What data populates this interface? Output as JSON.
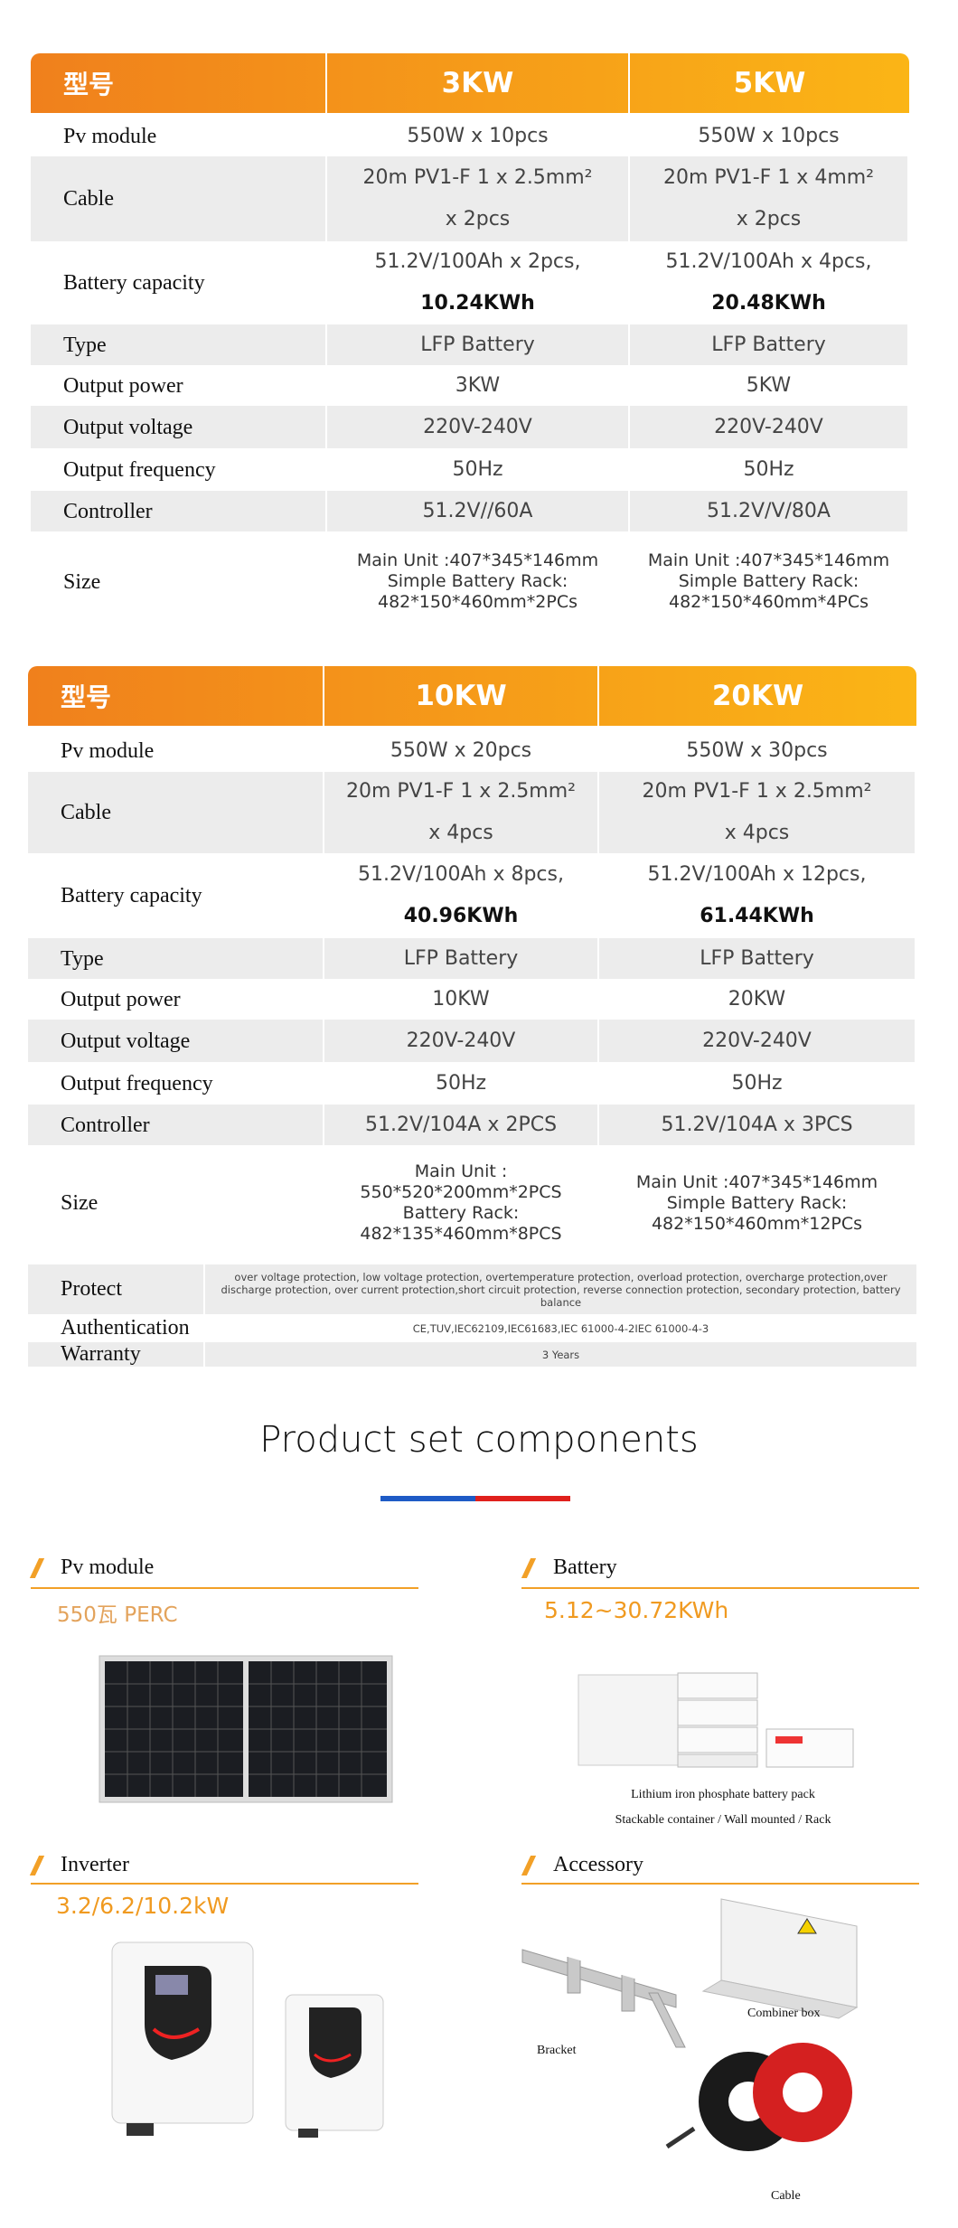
{
  "table_1": {
    "header": [
      "型号",
      "3KW",
      "5KW"
    ],
    "rows": [
      [
        "Pv module",
        "550W x 10pcs",
        "550W x 10pcs"
      ],
      [
        "Cable",
        [
          "20m PV1-F 1 x 2.5mm²",
          "x 2pcs"
        ],
        [
          "20m PV1-F 1 x 4mm²",
          "x 2pcs"
        ]
      ],
      [
        "Battery capacity",
        {
          "text": "51.2V/100Ah x 2pcs,",
          "total": "10.24KWh"
        },
        {
          "text": "51.2V/100Ah x 4pcs,",
          "total": "20.48KWh"
        }
      ],
      [
        "Type",
        "LFP Battery",
        "LFP Battery"
      ],
      [
        "Output power",
        "3KW",
        "5KW"
      ],
      [
        "Output voltage",
        "220V-240V",
        "220V-240V"
      ],
      [
        "Output frequency",
        "50Hz",
        "50Hz"
      ],
      [
        "Controller",
        "51.2V//60A",
        "51.2V/V/80A"
      ],
      [
        "Size",
        [
          "Main Unit :407*345*146mm",
          "Simple Battery Rack:",
          "482*150*460mm*2PCs"
        ],
        [
          "Main Unit :407*345*146mm",
          "Simple Battery Rack:",
          "482*150*460mm*4PCs"
        ]
      ]
    ]
  },
  "table_2": {
    "header": [
      "型号",
      "10KW",
      "20KW"
    ],
    "rows": [
      [
        "Pv module",
        "550W x 20pcs",
        "550W x 30pcs"
      ],
      [
        "Cable",
        [
          "20m PV1-F 1 x 2.5mm²",
          "x 4pcs"
        ],
        [
          "20m PV1-F 1 x 2.5mm²",
          "x 4pcs"
        ]
      ],
      [
        "Battery capacity",
        {
          "text": "51.2V/100Ah x 8pcs,",
          "total": "40.96KWh"
        },
        {
          "text": "51.2V/100Ah x 12pcs,",
          "total": "61.44KWh"
        }
      ],
      [
        "Type",
        "LFP Battery",
        "LFP Battery"
      ],
      [
        "Output power",
        "10KW",
        "20KW"
      ],
      [
        "Output voltage",
        "220V-240V",
        "220V-240V"
      ],
      [
        "Output frequency",
        "50Hz",
        "50Hz"
      ],
      [
        "Controller",
        "51.2V/104A x 2PCS",
        "51.2V/104A x 3PCS"
      ],
      [
        "Size",
        [
          "Main Unit :",
          "550*520*200mm*2PCS",
          "Battery Rack:",
          "482*135*460mm*8PCS"
        ],
        [
          "Main Unit :407*345*146mm",
          "Simple Battery Rack:",
          "482*150*460mm*12PCs"
        ]
      ]
    ],
    "footer_rows": [
      [
        "Protect",
        "over voltage protection, low voltage protection, overtemperature protection, overload protection, overcharge protection,over discharge protection, over current protection,short circuit protection, reverse connection protection, secondary protection, battery balance"
      ],
      [
        "Authentication",
        "CE,TUV,IEC62109,IEC61683,IEC 61000-4-2IEC 61000-4-3"
      ],
      [
        "Warranty",
        "3 Years"
      ]
    ]
  },
  "components": {
    "title": "Product set components",
    "items": [
      {
        "heading": "Pv module",
        "subtitle": "550瓦 PERC"
      },
      {
        "heading": "Battery",
        "subtitle": "5.12~30.72KWh",
        "captions": [
          "Lithium iron phosphate battery pack",
          "Stackable container / Wall mounted / Rack"
        ]
      },
      {
        "heading": "Inverter",
        "subtitle": "3.2/6.2/10.2kW"
      },
      {
        "heading": "Accessory",
        "labels": [
          "Bracket",
          "Combiner box",
          "Cable"
        ]
      }
    ]
  }
}
